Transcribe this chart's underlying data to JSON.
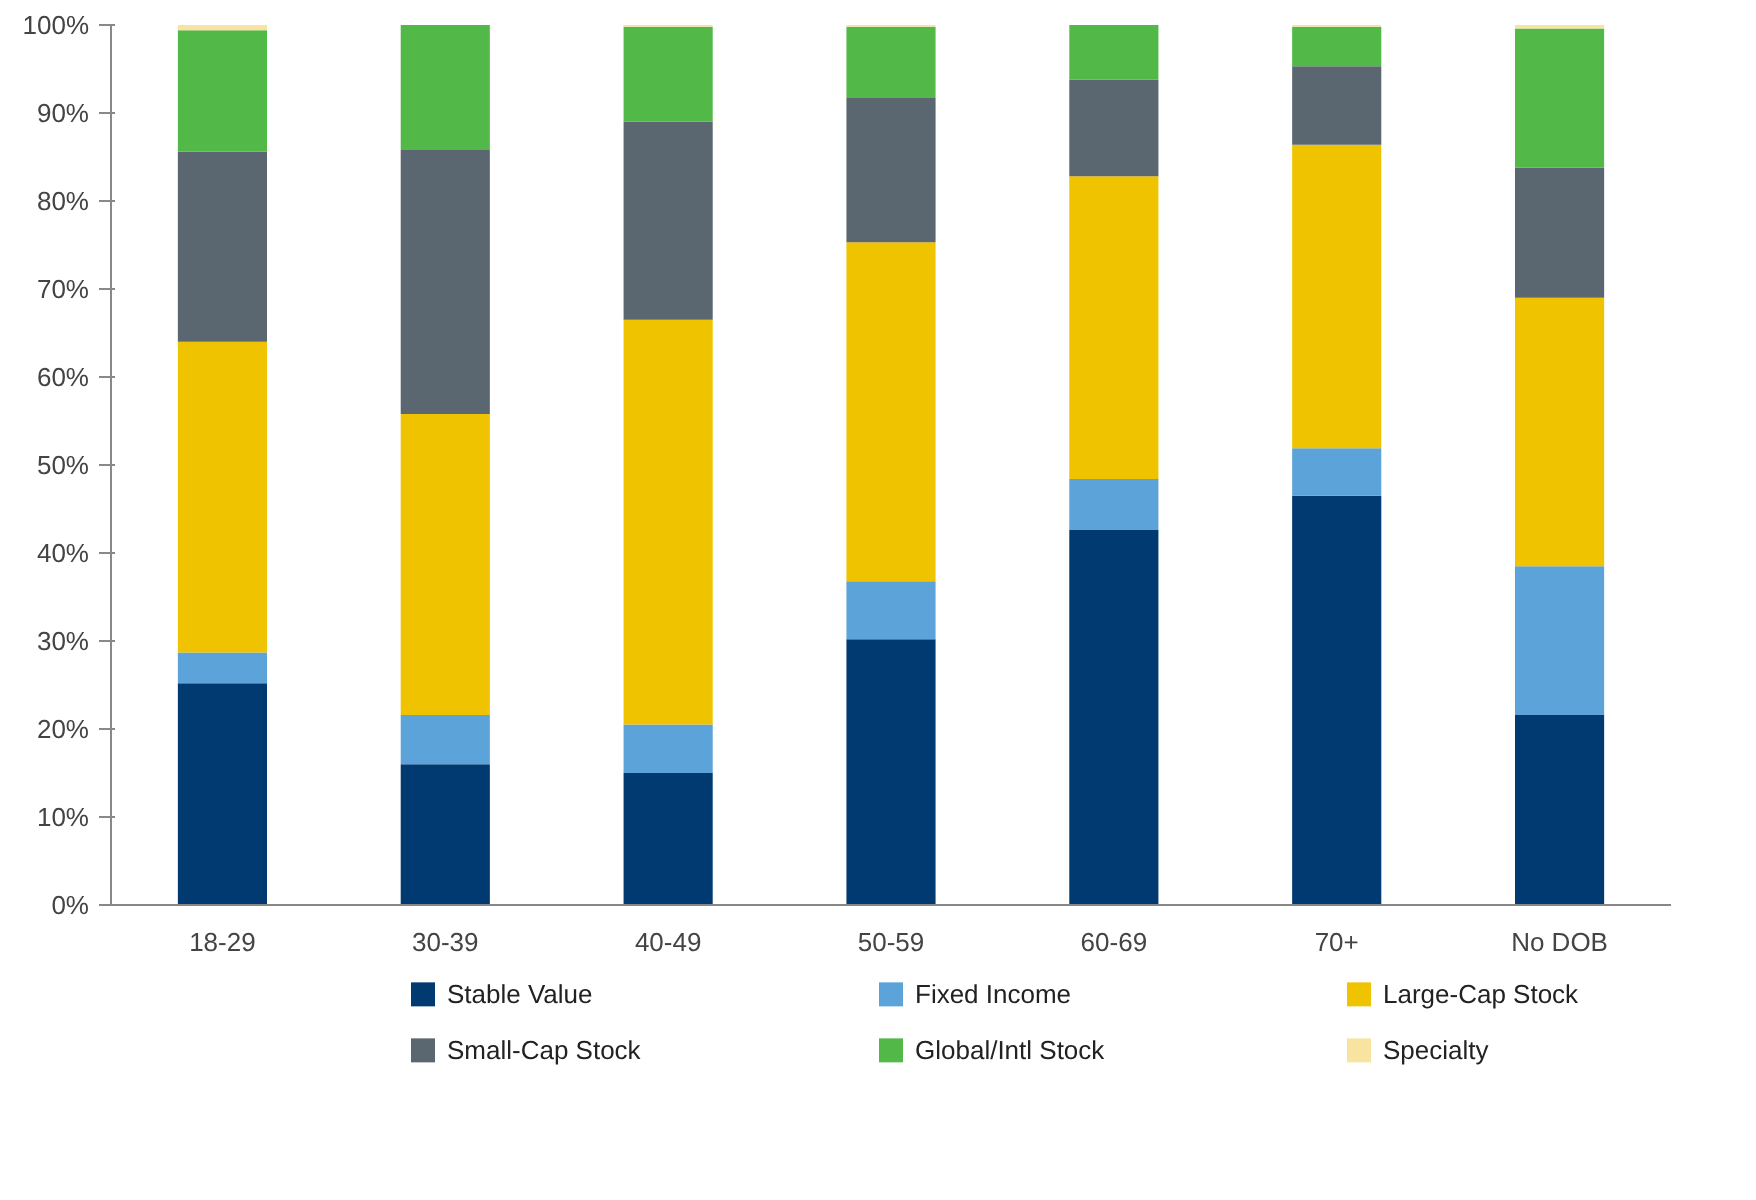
{
  "chart_data": {
    "type": "bar",
    "stacked": true,
    "categories": [
      "18-29",
      "30-39",
      "40-49",
      "50-59",
      "60-69",
      "70+",
      "No DOB"
    ],
    "series": [
      {
        "name": "Stable Value",
        "color": "#003a70",
        "values": [
          25.2,
          16,
          15,
          30.2,
          42.6,
          46.5,
          21.6
        ]
      },
      {
        "name": "Fixed Income",
        "color": "#5ba3d9",
        "values": [
          3.5,
          5.6,
          5.5,
          6.6,
          5.8,
          5.4,
          16.9
        ]
      },
      {
        "name": "Large-Cap Stock",
        "color": "#f0c300",
        "values": [
          35.3,
          34.2,
          46,
          38.5,
          34.4,
          34.5,
          30.5
        ]
      },
      {
        "name": "Small-Cap Stock",
        "color": "#5a6670",
        "values": [
          21.6,
          30,
          22.5,
          16.4,
          11,
          8.9,
          14.8
        ]
      },
      {
        "name": "Global/Intl Stock",
        "color": "#52b948",
        "values": [
          13.8,
          14.2,
          10.8,
          8.1,
          6.2,
          4.5,
          15.8
        ]
      },
      {
        "name": "Specialty",
        "color": "#f9e3a0",
        "values": [
          0.6,
          0,
          0.2,
          0.2,
          0,
          0.2,
          0.4
        ]
      }
    ],
    "ylim": [
      0,
      100
    ],
    "yticks": [
      {
        "value": 0,
        "label": "0%"
      },
      {
        "value": 10,
        "label": "10%"
      },
      {
        "value": 20,
        "label": "20%"
      },
      {
        "value": 30,
        "label": "30%"
      },
      {
        "value": 40,
        "label": "40%"
      },
      {
        "value": 50,
        "label": "50%"
      },
      {
        "value": 60,
        "label": "60%"
      },
      {
        "value": 70,
        "label": "70%"
      },
      {
        "value": 80,
        "label": "80%"
      },
      {
        "value": 90,
        "label": "90%"
      },
      {
        "value": 100,
        "label": "100%"
      }
    ],
    "grid": false,
    "legend": "bottom"
  }
}
